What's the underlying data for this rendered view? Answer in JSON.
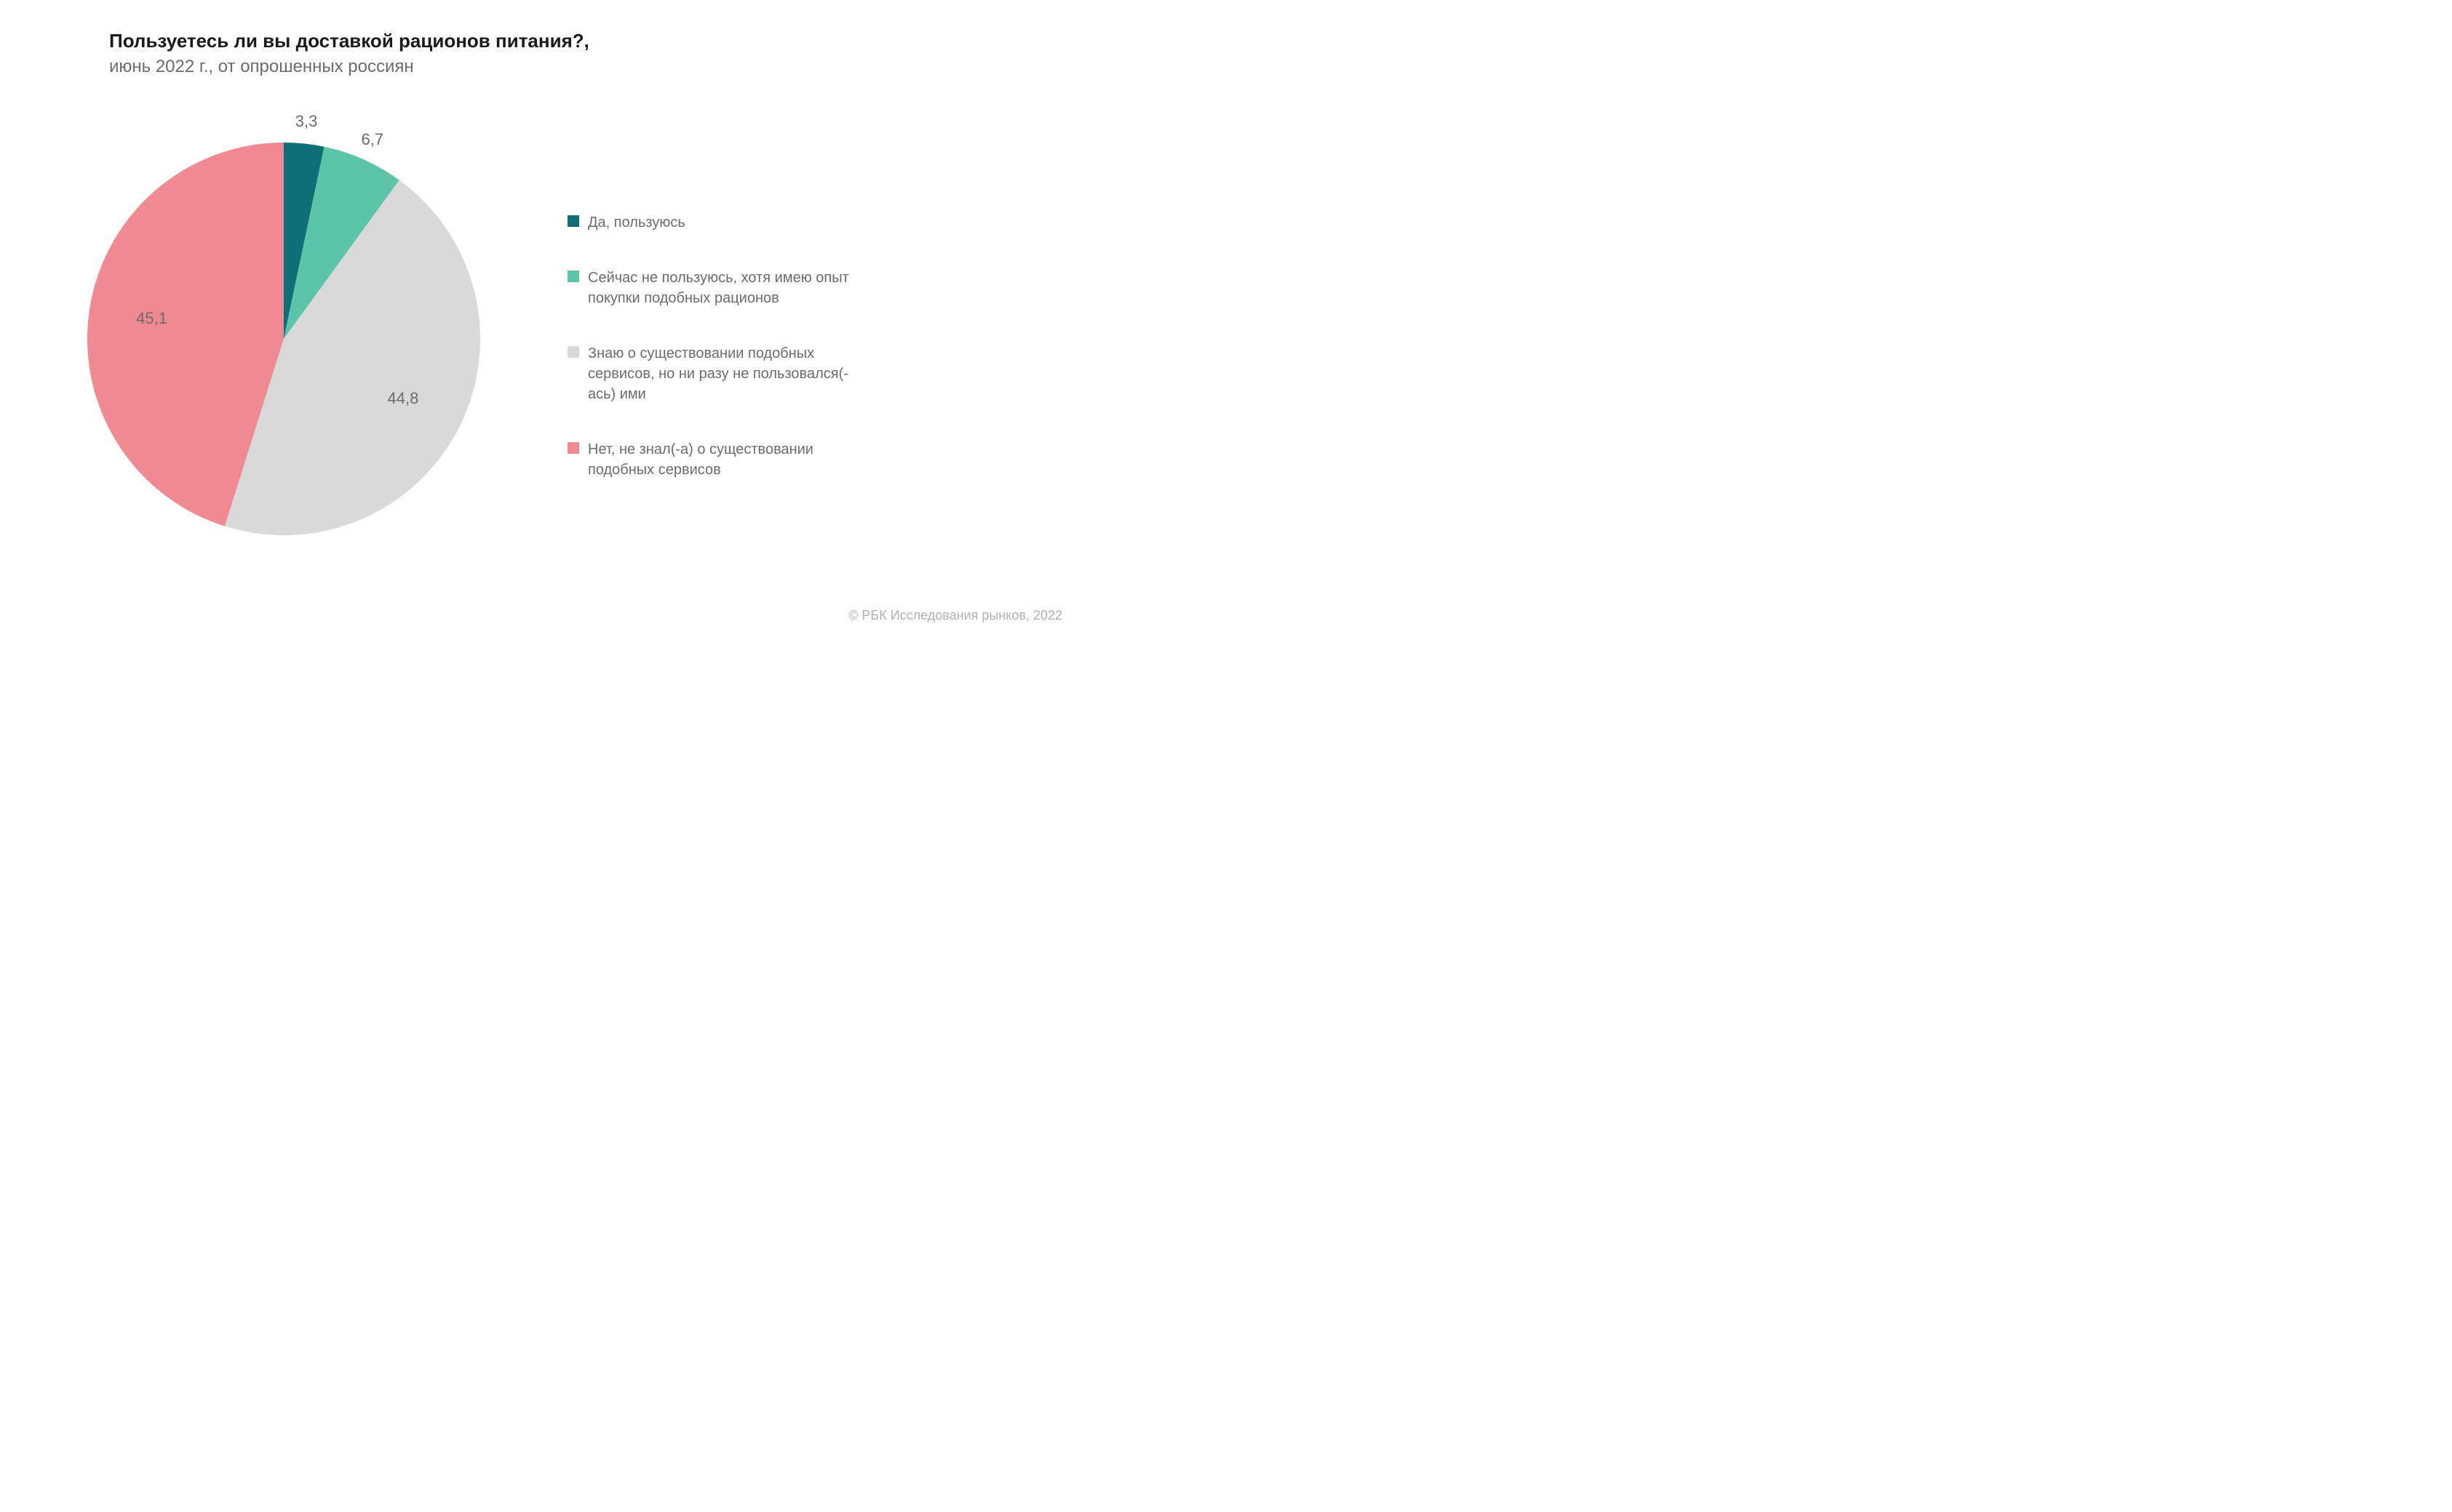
{
  "chart": {
    "type": "pie",
    "title": "Пользуетесь ли вы доставкой рационов питания?,",
    "subtitle": "июнь 2022 г., от опрошенных россиян",
    "title_fontsize": 26,
    "subtitle_fontsize": 24,
    "title_color": "#1a1a1a",
    "subtitle_color": "#6b6b6b",
    "background_color": "#ffffff",
    "pie_radius": 270,
    "start_angle_deg": -90,
    "slices": [
      {
        "value": 3.3,
        "label": "3,3",
        "color": "#0f6e76",
        "legend": "Да, пользуюсь"
      },
      {
        "value": 6.7,
        "label": "6,7",
        "color": "#5bc4a9",
        "legend": "Сейчас не пользуюсь, хотя имею опыт покупки подобных рационов"
      },
      {
        "value": 44.8,
        "label": "44,8",
        "color": "#d9d9d9",
        "legend": "Знаю о существовании подобных сервисов, но ни разу не пользовался(-ась) ими"
      },
      {
        "value": 45.1,
        "label": "45,1",
        "color": "#f08a92",
        "legend": "Нет, не знал(-а) о существовании подобных сервисов"
      }
    ],
    "label_fontsize": 22,
    "label_color": "#6b6b6b",
    "legend_fontsize": 20,
    "legend_swatch_size": 16,
    "credit": "© РБК Исследования рынков, 2022",
    "credit_fontsize": 18,
    "credit_color": "#b0b0b0"
  }
}
